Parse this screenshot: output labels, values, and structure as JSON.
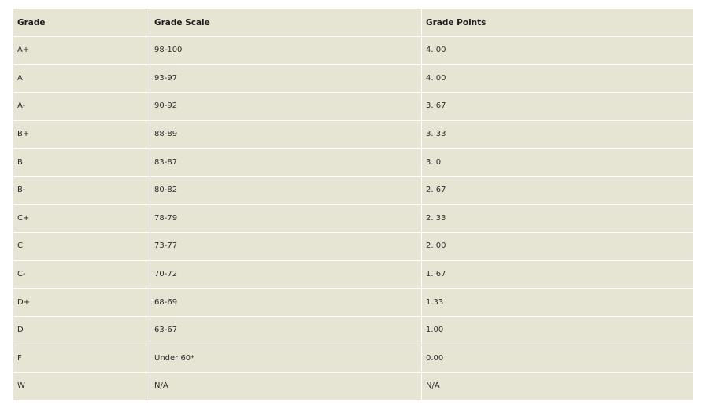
{
  "table": {
    "headers": [
      "Grade",
      "Grade Scale",
      "Grade Points"
    ],
    "rows": [
      [
        "A+",
        "98-100",
        "4. 00"
      ],
      [
        "A",
        "93-97",
        "4. 00"
      ],
      [
        "A-",
        "90-92",
        "3. 67"
      ],
      [
        "B+",
        "88-89",
        "3. 33"
      ],
      [
        "B",
        "83-87",
        "3. 0"
      ],
      [
        "B-",
        "80-82",
        "2. 67"
      ],
      [
        "C+",
        "78-79",
        "2. 33"
      ],
      [
        "C",
        "73-77",
        "2. 00"
      ],
      [
        "C-",
        "70-72",
        "1. 67"
      ],
      [
        "D+",
        "68-69",
        "1.33"
      ],
      [
        "D",
        "63-67",
        "1.00"
      ],
      [
        "F",
        "Under 60*",
        "0.00"
      ],
      [
        "W",
        "N/A",
        "N/A"
      ]
    ]
  },
  "colors": {
    "cell_background": "#e6e4d3",
    "border": "#ffffff",
    "text": "#2b2b2b"
  }
}
